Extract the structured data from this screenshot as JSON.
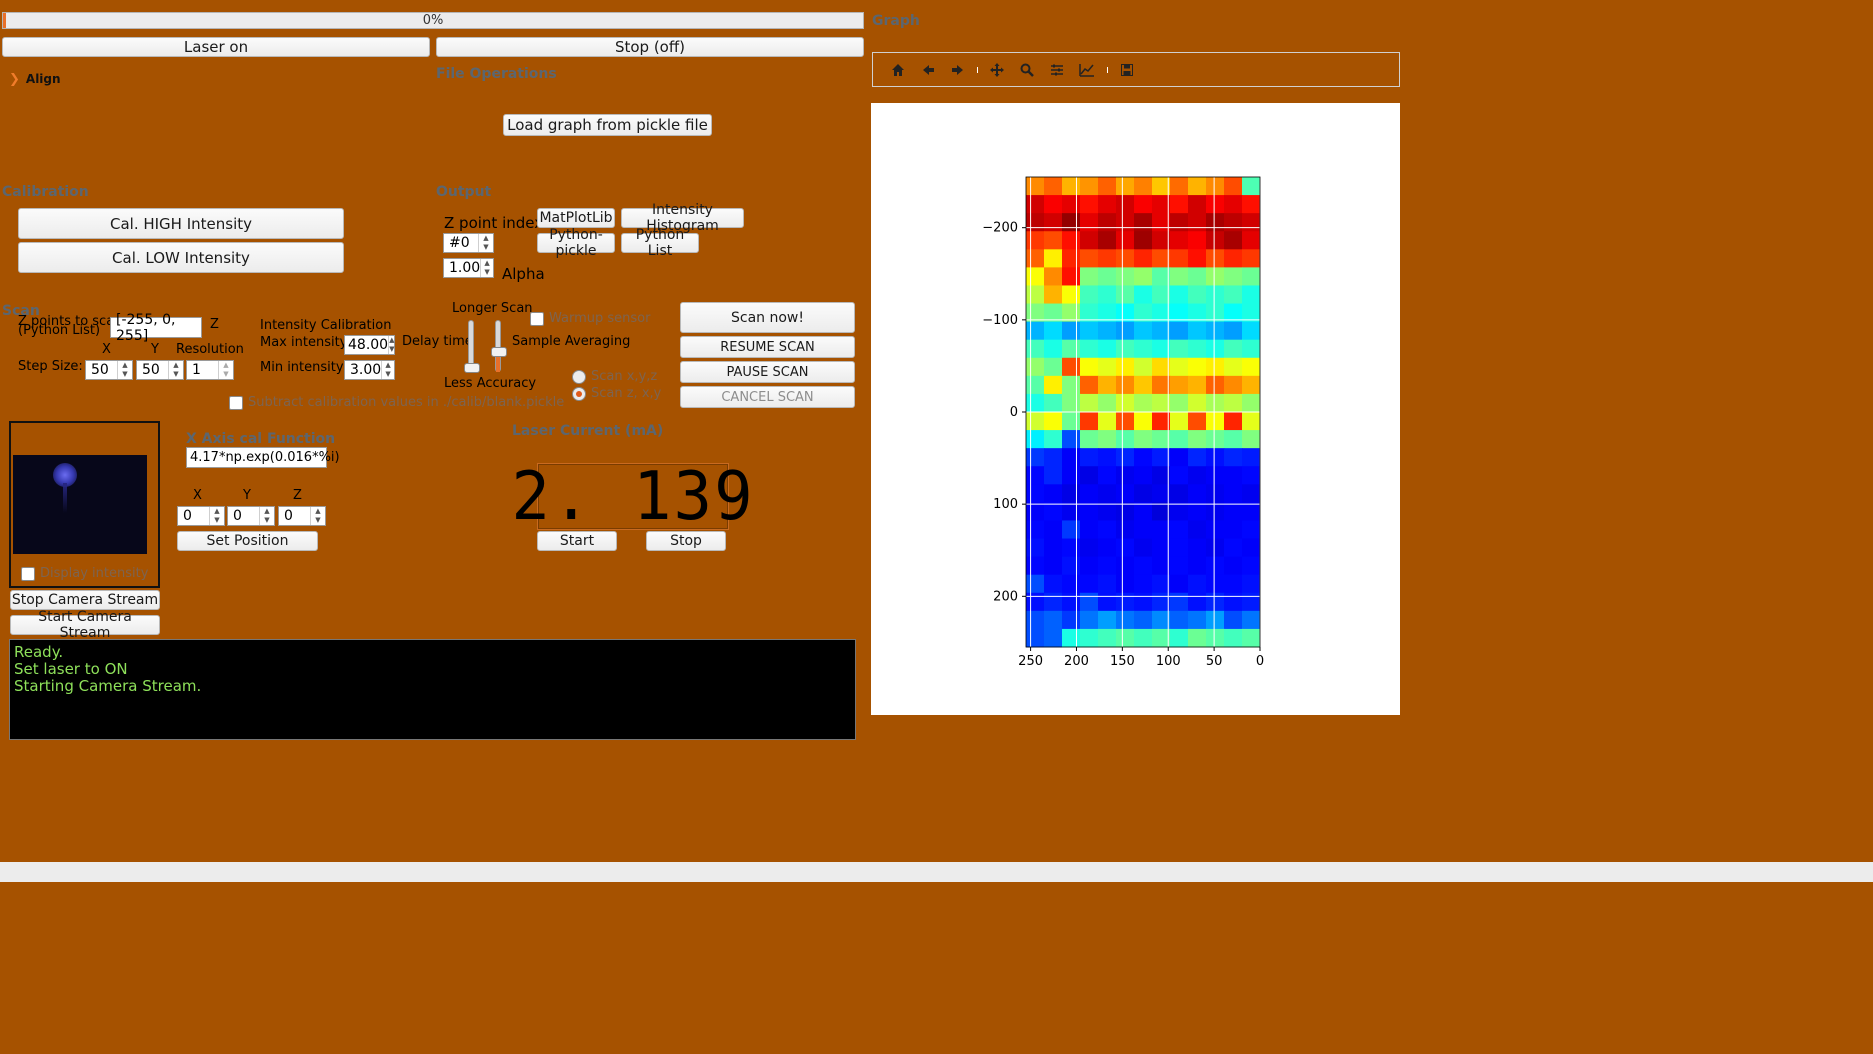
{
  "progress": {
    "value": 0,
    "text": "0%"
  },
  "top_buttons": {
    "laser_on": "Laser on",
    "stop": "Stop (off)"
  },
  "align": {
    "label": "Align"
  },
  "file_ops": {
    "title": "File Operations",
    "load_button": "Load graph from pickle file"
  },
  "calibration": {
    "title": "Calibration",
    "high_button": "Cal. HIGH Intensity",
    "low_button": "Cal. LOW Intensity"
  },
  "output": {
    "title": "Output",
    "z_index_label": "Z point index",
    "z_index_value": "#0",
    "alpha_value": "1.00",
    "alpha_label": "Alpha",
    "buttons": [
      "MatPlotLib",
      "Intensity Histogram",
      "Python-pickle",
      "Python List"
    ]
  },
  "scan": {
    "title": "Scan",
    "z_points_label": "Z points to scan\n(Python List)",
    "z_points_value": "[-255, 0, 255]",
    "z_label": "Z",
    "x_label": "X",
    "y_label": "Y",
    "resolution_label": "Resolution",
    "step_size_label": "Step Size:",
    "step_x": "50",
    "step_y": "50",
    "resolution": "1",
    "intensity_cal_label": "Intensity Calibration",
    "max_intensity_label": "Max intensity",
    "max_intensity": "48.00",
    "min_intensity_label": "Min intensity",
    "min_intensity": "3.00",
    "delay_time_label": "Delay time",
    "longer_scan_label": "Longer Scan",
    "less_accuracy_label": "Less Accuracy",
    "sample_avg_label": "Sample Averaging",
    "warmup_label": "Warmup sensor",
    "subtract_label": "Subtract calibration values in ./calib/blank.pickle",
    "scan_xyz_label": "Scan x,y,z",
    "scan_zxy_label": "Scan z, x,y",
    "scan_now": "Scan now!",
    "resume": "RESUME SCAN",
    "pause": "PAUSE SCAN",
    "cancel": "CANCEL SCAN"
  },
  "camera": {
    "display_intensity_label": "Display intensity",
    "stop_stream": "Stop Camera Stream",
    "start_stream": "Start Camera Stream"
  },
  "xaxis": {
    "title": "X Axis cal Function",
    "function": "4.17*np.exp(0.016*%i)",
    "x_label": "X",
    "y_label": "Y",
    "z_label": "Z",
    "x": "0",
    "y": "0",
    "z": "0",
    "set_position": "Set Position"
  },
  "laser_current": {
    "title": "Laser Current (mA)",
    "value": "2. 139",
    "start": "Start",
    "stop": "Stop"
  },
  "log": [
    "Ready.",
    "Set laser to ON",
    "Starting Camera Stream."
  ],
  "graph": {
    "title": "Graph"
  },
  "toolbar_icons": [
    "home-icon",
    "back-icon",
    "forward-icon",
    "pan-icon",
    "zoom-icon",
    "configure-subplots-icon",
    "edit-axis-icon",
    "save-icon"
  ],
  "chart_data": {
    "type": "heatmap",
    "colormap": "jet",
    "title": "",
    "xlabel": "",
    "ylabel": "",
    "xlim": [
      255,
      0
    ],
    "ylim": [
      255,
      -255
    ],
    "x_ticks": [
      250,
      200,
      150,
      100,
      50,
      0
    ],
    "y_ticks": [
      -200,
      -100,
      0,
      100,
      200
    ],
    "grid": true,
    "cols": 13,
    "rows": 26,
    "values": [
      [
        0.74,
        0.78,
        0.7,
        0.73,
        0.78,
        0.71,
        0.75,
        0.68,
        0.77,
        0.7,
        0.74,
        0.8,
        0.45
      ],
      [
        0.92,
        0.88,
        0.9,
        0.86,
        0.9,
        0.92,
        0.88,
        0.9,
        0.86,
        0.92,
        0.88,
        0.9,
        0.86
      ],
      [
        0.94,
        0.92,
        0.98,
        0.9,
        0.94,
        0.92,
        0.96,
        0.9,
        0.94,
        0.92,
        0.96,
        0.94,
        0.92
      ],
      [
        0.82,
        0.8,
        0.86,
        0.92,
        0.96,
        0.9,
        0.97,
        0.92,
        0.9,
        0.88,
        0.93,
        0.96,
        0.9
      ],
      [
        0.78,
        0.64,
        0.84,
        0.8,
        0.82,
        0.8,
        0.84,
        0.8,
        0.82,
        0.86,
        0.8,
        0.84,
        0.82
      ],
      [
        0.62,
        0.74,
        0.86,
        0.5,
        0.48,
        0.5,
        0.52,
        0.46,
        0.5,
        0.48,
        0.52,
        0.5,
        0.48
      ],
      [
        0.56,
        0.7,
        0.62,
        0.44,
        0.42,
        0.46,
        0.4,
        0.44,
        0.4,
        0.44,
        0.42,
        0.44,
        0.4
      ],
      [
        0.5,
        0.48,
        0.52,
        0.42,
        0.4,
        0.38,
        0.42,
        0.4,
        0.38,
        0.4,
        0.42,
        0.38,
        0.4
      ],
      [
        0.3,
        0.34,
        0.28,
        0.32,
        0.3,
        0.28,
        0.32,
        0.3,
        0.28,
        0.32,
        0.3,
        0.28,
        0.34
      ],
      [
        0.44,
        0.4,
        0.46,
        0.42,
        0.4,
        0.44,
        0.42,
        0.4,
        0.44,
        0.42,
        0.4,
        0.44,
        0.42
      ],
      [
        0.52,
        0.48,
        0.8,
        0.62,
        0.6,
        0.64,
        0.58,
        0.66,
        0.6,
        0.62,
        0.64,
        0.6,
        0.62
      ],
      [
        0.46,
        0.64,
        0.5,
        0.78,
        0.7,
        0.74,
        0.68,
        0.76,
        0.72,
        0.7,
        0.78,
        0.74,
        0.7
      ],
      [
        0.4,
        0.44,
        0.5,
        0.56,
        0.52,
        0.58,
        0.54,
        0.56,
        0.52,
        0.58,
        0.54,
        0.56,
        0.52
      ],
      [
        0.58,
        0.62,
        0.48,
        0.82,
        0.6,
        0.8,
        0.62,
        0.84,
        0.6,
        0.8,
        0.62,
        0.84,
        0.6
      ],
      [
        0.36,
        0.42,
        0.2,
        0.48,
        0.5,
        0.46,
        0.5,
        0.48,
        0.46,
        0.5,
        0.48,
        0.46,
        0.5
      ],
      [
        0.18,
        0.16,
        0.12,
        0.15,
        0.14,
        0.16,
        0.13,
        0.15,
        0.12,
        0.16,
        0.14,
        0.16,
        0.15
      ],
      [
        0.13,
        0.16,
        0.12,
        0.1,
        0.13,
        0.11,
        0.12,
        0.1,
        0.13,
        0.11,
        0.12,
        0.12,
        0.13
      ],
      [
        0.13,
        0.12,
        0.1,
        0.12,
        0.11,
        0.12,
        0.1,
        0.11,
        0.1,
        0.12,
        0.11,
        0.12,
        0.11
      ],
      [
        0.12,
        0.13,
        0.11,
        0.12,
        0.11,
        0.1,
        0.12,
        0.09,
        0.11,
        0.12,
        0.11,
        0.12,
        0.12
      ],
      [
        0.13,
        0.12,
        0.18,
        0.12,
        0.13,
        0.11,
        0.12,
        0.12,
        0.13,
        0.11,
        0.12,
        0.12,
        0.13
      ],
      [
        0.14,
        0.12,
        0.13,
        0.11,
        0.12,
        0.13,
        0.11,
        0.12,
        0.13,
        0.12,
        0.11,
        0.13,
        0.12
      ],
      [
        0.13,
        0.12,
        0.14,
        0.12,
        0.13,
        0.12,
        0.13,
        0.12,
        0.13,
        0.12,
        0.13,
        0.12,
        0.13
      ],
      [
        0.2,
        0.14,
        0.13,
        0.13,
        0.14,
        0.12,
        0.13,
        0.14,
        0.12,
        0.14,
        0.13,
        0.13,
        0.14
      ],
      [
        0.14,
        0.16,
        0.14,
        0.2,
        0.14,
        0.15,
        0.14,
        0.16,
        0.18,
        0.14,
        0.16,
        0.14,
        0.15
      ],
      [
        0.2,
        0.22,
        0.18,
        0.24,
        0.28,
        0.24,
        0.22,
        0.26,
        0.22,
        0.24,
        0.28,
        0.2,
        0.24
      ],
      [
        0.2,
        0.22,
        0.4,
        0.42,
        0.44,
        0.46,
        0.44,
        0.46,
        0.42,
        0.48,
        0.46,
        0.44,
        0.46
      ]
    ]
  }
}
